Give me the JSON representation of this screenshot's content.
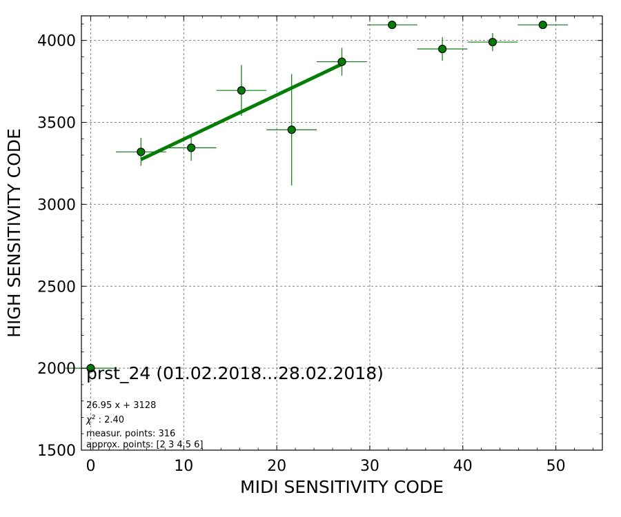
{
  "chart_data": {
    "type": "scatter",
    "title": "",
    "xlabel": "MIDI SENSITIVITY CODE",
    "ylabel": "HIGH SENSITIVITY CODE",
    "xlim": [
      -1,
      55
    ],
    "ylim": [
      1500,
      4150
    ],
    "x_ticks": [
      0,
      10,
      20,
      30,
      40,
      50
    ],
    "y_ticks": [
      1500,
      2000,
      2500,
      3000,
      3500,
      4000
    ],
    "grid": true,
    "colors": {
      "series": "#008000",
      "marker_face": "#008000",
      "marker_edge": "#000000"
    },
    "series": [
      {
        "points": [
          {
            "x": 0.0,
            "y": 2000,
            "xerr": 2.7,
            "yerr": 0
          },
          {
            "x": 5.4,
            "y": 3320,
            "xerr": 2.7,
            "yerr": 85
          },
          {
            "x": 10.8,
            "y": 3345,
            "xerr": 2.7,
            "yerr": 80
          },
          {
            "x": 16.2,
            "y": 3695,
            "xerr": 2.7,
            "yerr": 155
          },
          {
            "x": 21.6,
            "y": 3455,
            "xerr": 2.7,
            "yerr": 340
          },
          {
            "x": 27.0,
            "y": 3870,
            "xerr": 2.7,
            "yerr": 85
          },
          {
            "x": 32.4,
            "y": 4095,
            "xerr": 2.7,
            "yerr": 0
          },
          {
            "x": 37.8,
            "y": 3948,
            "xerr": 2.7,
            "yerr": 72
          },
          {
            "x": 43.2,
            "y": 3990,
            "xerr": 2.7,
            "yerr": 55
          },
          {
            "x": 48.6,
            "y": 4095,
            "xerr": 2.7,
            "yerr": 0
          }
        ]
      }
    ],
    "fit_line": {
      "slope": 26.95,
      "intercept": 3128,
      "x_range": [
        5.4,
        27.0
      ]
    },
    "annotations": {
      "main": "prst_24 (01.02.2018...28.02.2018)",
      "fit": "26.95 x + 3128",
      "chi2_value": "2.40",
      "measur_points": "measur. points: 316",
      "approx_points": "approx. points: [2 3 4 5 6]"
    }
  }
}
